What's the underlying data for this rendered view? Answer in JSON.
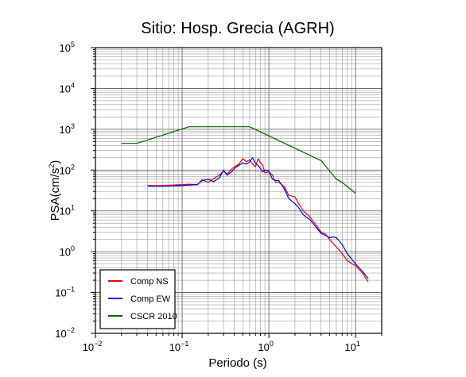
{
  "chart_data": {
    "type": "line",
    "title": "Sitio: Hosp. Grecia (AGRH)",
    "xlabel": "Periodo (s)",
    "ylabel_base": "PSA(cm/s",
    "ylabel_exp": "2",
    "ylabel_close": ")",
    "x_scale": "log",
    "y_scale": "log",
    "xlim": [
      0.01,
      20
    ],
    "ylim": [
      0.01,
      100000
    ],
    "grid": true,
    "legend_position": "bottom-left",
    "x_ticks": [
      {
        "base": "10",
        "exp": "−2"
      },
      {
        "base": "10",
        "exp": "−1"
      },
      {
        "base": "10",
        "exp": "0"
      },
      {
        "base": "10",
        "exp": "1"
      }
    ],
    "y_ticks": [
      {
        "base": "10",
        "exp": "−2"
      },
      {
        "base": "10",
        "exp": "−1"
      },
      {
        "base": "10",
        "exp": "0"
      },
      {
        "base": "10",
        "exp": "1"
      },
      {
        "base": "10",
        "exp": "2"
      },
      {
        "base": "10",
        "exp": "3"
      },
      {
        "base": "10",
        "exp": "4"
      },
      {
        "base": "10",
        "exp": "5"
      }
    ],
    "series": [
      {
        "name": "Comp NS",
        "color": "#ff0000",
        "x": [
          0.04,
          0.06,
          0.08,
          0.1,
          0.12,
          0.15,
          0.17,
          0.2,
          0.23,
          0.27,
          0.3,
          0.33,
          0.37,
          0.4,
          0.45,
          0.5,
          0.55,
          0.6,
          0.65,
          0.7,
          0.75,
          0.8,
          0.85,
          0.9,
          1.0,
          1.1,
          1.2,
          1.3,
          1.5,
          1.7,
          2.0,
          2.2,
          2.5,
          3.0,
          3.5,
          4.0,
          4.5,
          5.0,
          6.0,
          7.0,
          8.0,
          10.0,
          12.0,
          14.0
        ],
        "y": [
          42,
          42,
          43,
          44,
          45,
          44,
          58,
          50,
          62,
          75,
          95,
          80,
          105,
          120,
          140,
          190,
          160,
          180,
          140,
          120,
          190,
          150,
          130,
          85,
          90,
          75,
          50,
          50,
          40,
          24,
          22,
          15,
          10,
          7,
          4.5,
          3,
          2.7,
          2.0,
          1.3,
          0.9,
          0.6,
          0.45,
          0.3,
          0.18
        ]
      },
      {
        "name": "Comp EW",
        "color": "#0000ff",
        "x": [
          0.04,
          0.06,
          0.08,
          0.1,
          0.12,
          0.15,
          0.17,
          0.2,
          0.23,
          0.27,
          0.3,
          0.33,
          0.37,
          0.4,
          0.45,
          0.5,
          0.55,
          0.6,
          0.65,
          0.7,
          0.75,
          0.8,
          0.85,
          0.9,
          1.0,
          1.1,
          1.2,
          1.3,
          1.5,
          1.7,
          2.0,
          2.2,
          2.5,
          3.0,
          3.5,
          4.0,
          4.5,
          5.0,
          5.5,
          6.0,
          7.0,
          8.0,
          10.0,
          12.0,
          14.0
        ],
        "y": [
          40,
          40,
          41,
          42,
          43,
          44,
          55,
          60,
          52,
          65,
          100,
          75,
          90,
          110,
          130,
          150,
          140,
          160,
          200,
          150,
          130,
          110,
          90,
          100,
          95,
          60,
          55,
          55,
          35,
          20,
          15,
          12,
          8,
          6,
          4.0,
          2.8,
          2.5,
          2.2,
          2.3,
          2.2,
          1.5,
          0.9,
          0.5,
          0.33,
          0.22
        ]
      },
      {
        "name": "CSCR 2010",
        "color": "#006400",
        "x": [
          0.02,
          0.03,
          0.12,
          0.6,
          4.0,
          6.0,
          7.0,
          10.0
        ],
        "y": [
          450,
          450,
          1150,
          1150,
          170,
          60,
          50,
          27
        ]
      }
    ]
  }
}
